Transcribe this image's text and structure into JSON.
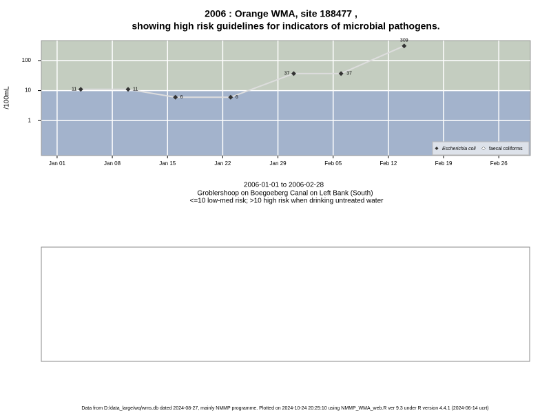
{
  "chart_data": {
    "type": "line",
    "title": "2006 : Orange WMA, site 188477 ,",
    "subtitle": "showing high risk guidelines for indicators of microbial pathogens.",
    "y_label": "/100mL",
    "notes": [
      "2006-01-01 to 2006-02-28",
      "Groblershoop on Boegoeberg Canal on Left Bank (South)",
      "<=10 low-med risk; >10 high risk when drinking untreated water"
    ],
    "footer": "Data from D:/data_large/wq/wms.db dated 2024-08-27, mainly NMMP programme. Plotted on 2024-10-24 20:25:10 using NMMP_WMA_web.R ver 9.3 under R version 4.4.1 (2024-06-14 ucrt)",
    "x": [
      "2006-01-04",
      "2006-01-10",
      "2006-01-16",
      "2006-01-23",
      "2006-01-31",
      "2006-02-06",
      "2006-02-14"
    ],
    "series": [
      {
        "name": "Escherichia coli",
        "color": "#333333",
        "values": [
          11,
          11,
          6,
          6,
          37,
          37,
          309
        ]
      },
      {
        "name": "faecal coliforms",
        "color": "#ffffff",
        "values": [
          null,
          null,
          null,
          null,
          null,
          null,
          null
        ]
      }
    ],
    "line_color": "#dddddd",
    "xlim": [
      "2005-12-30",
      "2006-03-02"
    ],
    "xticks": [
      {
        "value": "2006-01-01",
        "label": "Jan 01"
      },
      {
        "value": "2006-01-08",
        "label": "Jan 08"
      },
      {
        "value": "2006-01-15",
        "label": "Jan 15"
      },
      {
        "value": "2006-01-22",
        "label": "Jan 22"
      },
      {
        "value": "2006-01-29",
        "label": "Jan 29"
      },
      {
        "value": "2006-02-05",
        "label": "Feb 05"
      },
      {
        "value": "2006-02-12",
        "label": "Feb 12"
      },
      {
        "value": "2006-02-19",
        "label": "Feb 19"
      },
      {
        "value": "2006-02-26",
        "label": "Feb 26"
      }
    ],
    "ylim": [
      0.068,
      464
    ],
    "yticks": [
      1,
      10,
      100
    ],
    "log_y": true,
    "grid": true,
    "threshold": 10,
    "band_colors": {
      "low": "#a3b3cc",
      "high": "#c4cdc0"
    },
    "legend": "bottom-right"
  }
}
